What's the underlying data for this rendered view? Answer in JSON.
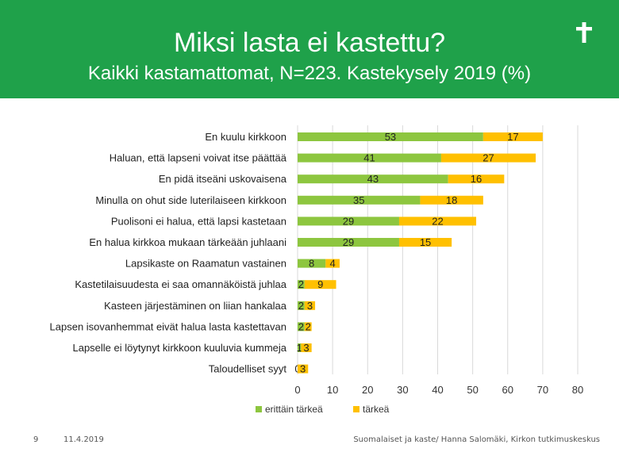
{
  "header": {
    "title": "Miksi lasta ei kastettu?",
    "subtitle": "Kaikki kastamattomat, N=223. Kastekysely 2019 (%)",
    "icon": "cross-icon",
    "background_color": "#1fa14a"
  },
  "footer": {
    "page_number": "9",
    "date": "11.4.2019",
    "source": "Suomalaiset ja kaste/ Hanna Salomäki, Kirkon tutkimuskeskus"
  },
  "chart_data": {
    "type": "bar",
    "orientation": "horizontal",
    "stacked": true,
    "categories": [
      "En kuulu kirkkoon",
      "Haluan, että lapseni voivat itse päättää",
      "En pidä itseäni uskovaisena",
      "Minulla on ohut side luterilaiseen kirkkoon",
      "Puolisoni ei halua, että lapsi kastetaan",
      "En halua kirkkoa mukaan tärkeään juhlaani",
      "Lapsikaste on Raamatun vastainen",
      "Kastetilaisuudesta ei saa omannäköistä juhlaa",
      "Kasteen järjestäminen on liian hankalaa",
      "Lapsen isovanhemmat eivät halua lasta kastettavan",
      "Lapselle ei löytynyt kirkkoon kuuluvia kummeja",
      "Taloudelliset syyt"
    ],
    "series": [
      {
        "name": "erittäin tärkeä",
        "color": "#8dc63f",
        "values": [
          53,
          41,
          43,
          35,
          29,
          29,
          8,
          2,
          2,
          2,
          1,
          0
        ]
      },
      {
        "name": "tärkeä",
        "color": "#ffc000",
        "values": [
          17,
          27,
          16,
          18,
          22,
          15,
          4,
          9,
          3,
          2,
          3,
          3
        ]
      }
    ],
    "data_labels": {
      "erittäin tärkeä": [
        "53",
        "41",
        "43",
        "35",
        "29",
        "29",
        "8",
        "2",
        "2",
        "2",
        "1",
        "0"
      ],
      "tärkeä": [
        "17",
        "27",
        "16",
        "18",
        "22",
        "15",
        "4",
        "9",
        "3",
        "2",
        "3",
        "3"
      ]
    },
    "x_ticks": [
      0,
      10,
      20,
      30,
      40,
      50,
      60,
      70,
      80
    ],
    "xlim": [
      0,
      80
    ],
    "grid": true,
    "legend": "bottom"
  }
}
